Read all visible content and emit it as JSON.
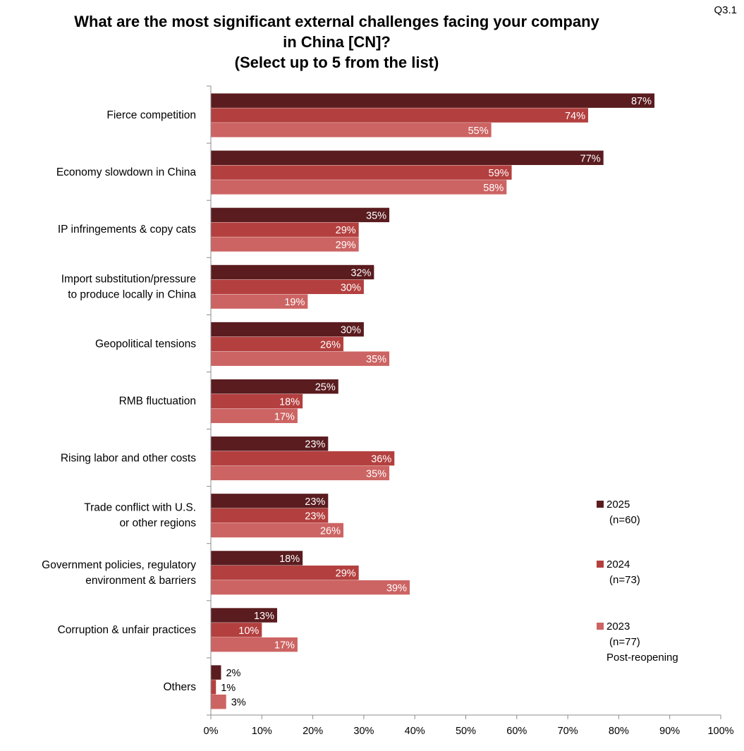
{
  "page_id": "Q3.1",
  "chart_data": {
    "type": "bar",
    "orientation": "horizontal",
    "title": [
      "What are the most significant external challenges facing your company",
      "in China [CN]?",
      "(Select up to 5 from the list)"
    ],
    "categories": [
      [
        "Fierce competition"
      ],
      [
        "Economy slowdown in China"
      ],
      [
        "IP infringements & copy cats"
      ],
      [
        "Import substitution/pressure",
        "to produce locally in China"
      ],
      [
        "Geopolitical tensions"
      ],
      [
        "RMB fluctuation"
      ],
      [
        "Rising labor and other costs"
      ],
      [
        "Trade conflict with U.S.",
        "or other regions"
      ],
      [
        "Government policies, regulatory",
        "environment & barriers"
      ],
      [
        "Corruption & unfair practices"
      ],
      [
        "Others"
      ]
    ],
    "series": [
      {
        "name": "2025",
        "sublabels": [
          "(n=60)"
        ],
        "color": "#5a1c1f",
        "values": [
          87,
          77,
          35,
          32,
          30,
          25,
          23,
          23,
          18,
          13,
          2
        ]
      },
      {
        "name": "2024",
        "sublabels": [
          "(n=73)"
        ],
        "color": "#b3403f",
        "values": [
          74,
          59,
          29,
          30,
          26,
          18,
          36,
          23,
          29,
          10,
          1
        ]
      },
      {
        "name": "2023",
        "sublabels": [
          "(n=77)",
          "Post-reopening"
        ],
        "color": "#cc6463",
        "values": [
          55,
          58,
          29,
          19,
          35,
          17,
          35,
          26,
          39,
          17,
          3
        ]
      }
    ],
    "xlim": [
      0,
      100
    ],
    "xticks": [
      "0%",
      "10%",
      "20%",
      "30%",
      "40%",
      "50%",
      "60%",
      "70%",
      "80%",
      "90%",
      "100%"
    ],
    "value_suffix": "%",
    "legend_position": "right"
  }
}
